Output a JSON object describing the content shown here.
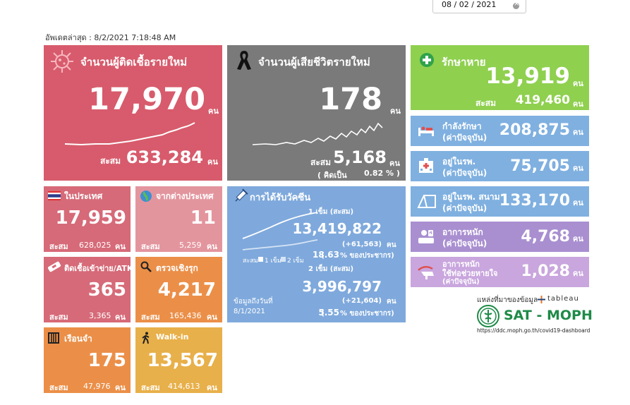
{
  "date_filter": {
    "value": "08 / 02 / 2021"
  },
  "last_updated": "อัพเดตล่าสุด : 8/2/2021 7:18:48 AM",
  "unit": "คน",
  "new_cases": {
    "title": "จำนวนผู้ติดเชื้อรายใหม่",
    "value": "17,970",
    "cum_label": "สะสม",
    "cum_value": "633,284"
  },
  "new_deaths": {
    "title": "จำนวนผู้เสียชีวิตรายใหม่",
    "value": "178",
    "cum_label": "สะสม",
    "cum_value": "5,168",
    "pct_open": "( คิดเป็น",
    "pct_value": "0.82",
    "pct_close": "% )"
  },
  "recovered": {
    "title": "รักษาหาย",
    "value": "13,919",
    "cum_label": "สะสม",
    "cum_value": "419,460"
  },
  "status_cards": [
    {
      "line1": "กำลังรักษา",
      "line2": "(ค่าปัจจุบัน)",
      "value": "208,875"
    },
    {
      "line1": "อยู่ในรพ.",
      "line2": "(ค่าปัจจุบัน)",
      "value": "75,705"
    },
    {
      "line1": "อยู่ในรพ. สนาม",
      "line2": "(ค่าปัจจุบัน)",
      "value": "133,170"
    },
    {
      "line1": "อาการหนัก",
      "line2": "(ค่าปัจจุบัน)",
      "value": "4,768"
    },
    {
      "line1": "อาการหนัก",
      "line2": "ใช้ท่อช่วยหายใจ",
      "line3": "(ค่าปัจจุบัน)",
      "value": "1,028"
    }
  ],
  "small_cards": [
    {
      "title": "ในประเทศ",
      "value": "17,959",
      "cum_label": "สะสม",
      "cum_value": "628,025"
    },
    {
      "title": "จากต่างประเทศ",
      "value": "11",
      "cum_label": "สะสม",
      "cum_value": "5,259"
    },
    {
      "title": "ติดเชื้อเข้าข่าย/ATK",
      "value": "365",
      "cum_label": "สะสม",
      "cum_value": "3,365"
    },
    {
      "title": "ตรวจเชิงรุก",
      "value": "4,217",
      "cum_label": "สะสม",
      "cum_value": "165,436"
    },
    {
      "title": "เรือนจำ",
      "value": "175",
      "cum_label": "สะสม",
      "cum_value": "47,976"
    },
    {
      "title": "Walk-in",
      "value": "13,567",
      "cum_label": "สะสม",
      "cum_value": "414,613"
    }
  ],
  "vaccine": {
    "title": "การได้รับวัคซีน",
    "dose1_label": "1 เข็ม (สะสม)",
    "dose1_value": "13,419,822",
    "dose1_daily": "(+61,563)",
    "dose1_pct": "18.63",
    "dose1_pct_suffix": "% ของประชากร)",
    "dose2_label": "2 เข็ม (สะสม)",
    "dose2_value": "3,996,797",
    "dose2_daily": "(+21,604)",
    "dose2_pct": "5.55",
    "dose2_pct_suffix": "% ของประชากร)",
    "legend_prefix": "สะสม",
    "legend_1": "1 เข็ม",
    "legend_2": "2 เข็ม",
    "asof_label": "ข้อมูลถึงวันที่",
    "asof_date": "8/1/2021"
  },
  "source": {
    "label": "แหล่งที่มาของข้อมูล",
    "tableau": "tableau",
    "logo_text": "SAT - MOPH",
    "url": "https://ddc.moph.go.th/covid19-dashboard"
  },
  "colors": {
    "cases": "#d75b6c",
    "deaths": "#7a7a7a",
    "recovered": "#8fd04f",
    "status": "#7fb0e0",
    "severe": "#a98fd0",
    "domestic": "#d66a78",
    "foreign": "#e3959e",
    "orange": "#eb8f48",
    "yellow": "#e8b04a",
    "vaccine": "#7fa9dc"
  }
}
